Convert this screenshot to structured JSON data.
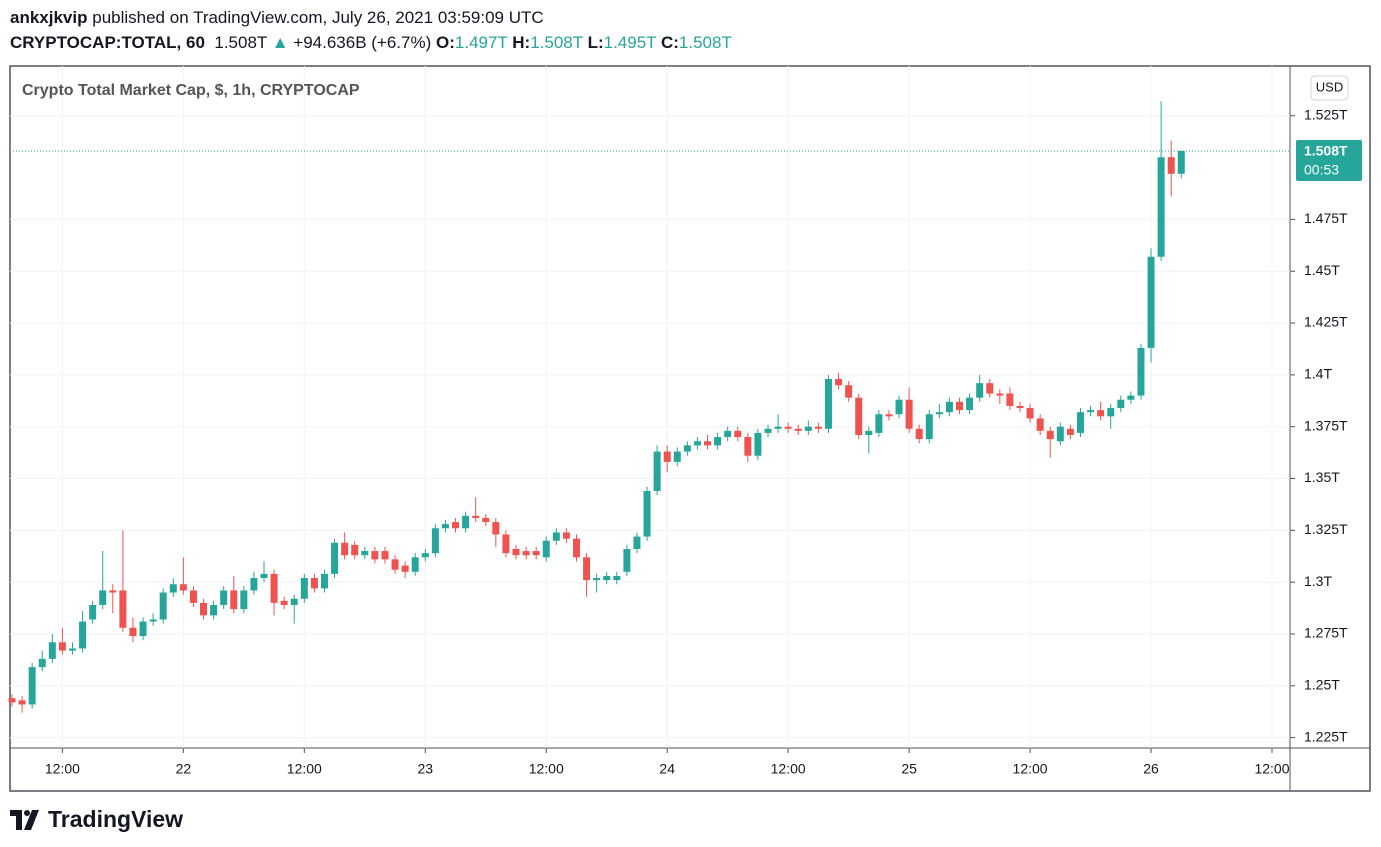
{
  "header": {
    "user": "ankxjkvip",
    "published": "published on TradingView.com, July 26, 2021 03:59:09 UTC",
    "symbol": "CRYPTOCAP:TOTAL, 60",
    "price": "1.508T",
    "change": "+94.636B (+6.7%)",
    "ohlc": [
      {
        "label": "O:",
        "value": "1.497T"
      },
      {
        "label": "H:",
        "value": "1.508T"
      },
      {
        "label": "L:",
        "value": "1.495T"
      },
      {
        "label": "C:",
        "value": "1.508T"
      }
    ]
  },
  "chart_data": {
    "type": "candlestick",
    "title": "Crypto Total Market Cap, $, 1h, CRYPTOCAP",
    "currency": "USD",
    "up_color": "#26a69a",
    "down_color": "#ef5350",
    "grid": true,
    "last_price": {
      "value": 1.508,
      "label": "1.508T",
      "countdown": "00:53"
    },
    "ylim": [
      1.22,
      1.549
    ],
    "yticks": [
      {
        "value": 1.225,
        "label": "1.225T"
      },
      {
        "value": 1.25,
        "label": "1.25T"
      },
      {
        "value": 1.275,
        "label": "1.275T"
      },
      {
        "value": 1.3,
        "label": "1.3T"
      },
      {
        "value": 1.325,
        "label": "1.325T"
      },
      {
        "value": 1.35,
        "label": "1.35T"
      },
      {
        "value": 1.375,
        "label": "1.375T"
      },
      {
        "value": 1.4,
        "label": "1.4T"
      },
      {
        "value": 1.425,
        "label": "1.425T"
      },
      {
        "value": 1.45,
        "label": "1.45T"
      },
      {
        "value": 1.475,
        "label": "1.475T"
      },
      {
        "value": 1.525,
        "label": "1.525T"
      }
    ],
    "categories": [
      null,
      null,
      null,
      null,
      null,
      "12:00",
      null,
      null,
      null,
      null,
      null,
      null,
      null,
      null,
      null,
      null,
      null,
      "22",
      null,
      null,
      null,
      null,
      null,
      null,
      null,
      null,
      null,
      null,
      null,
      "12:00",
      null,
      null,
      null,
      null,
      null,
      null,
      null,
      null,
      null,
      null,
      null,
      "23",
      null,
      null,
      null,
      null,
      null,
      null,
      null,
      null,
      null,
      null,
      null,
      "12:00",
      null,
      null,
      null,
      null,
      null,
      null,
      null,
      null,
      null,
      null,
      null,
      "24",
      null,
      null,
      null,
      null,
      null,
      null,
      null,
      null,
      null,
      null,
      null,
      "12:00",
      null,
      null,
      null,
      null,
      null,
      null,
      null,
      null,
      null,
      null,
      null,
      "25",
      null,
      null,
      null,
      null,
      null,
      null,
      null,
      null,
      null,
      null,
      null,
      "12:00",
      null,
      null,
      null,
      null,
      null,
      null,
      null,
      null,
      null,
      null,
      null,
      "26",
      null,
      null,
      null,
      null,
      null,
      null,
      null,
      null,
      null,
      null,
      null,
      "12:00"
    ],
    "open": [
      1.244,
      1.243,
      1.241,
      1.259,
      1.263,
      1.271,
      1.267,
      1.268,
      1.282,
      1.289,
      1.296,
      1.296,
      1.278,
      1.274,
      1.281,
      1.282,
      1.295,
      1.299,
      1.296,
      1.29,
      1.284,
      1.289,
      1.296,
      1.287,
      1.296,
      1.302,
      1.304,
      1.291,
      1.289,
      1.292,
      1.302,
      1.297,
      1.304,
      1.319,
      1.318,
      1.313,
      1.315,
      1.315,
      1.311,
      1.308,
      1.305,
      1.312,
      1.314,
      1.326,
      1.329,
      1.326,
      1.332,
      1.331,
      1.329,
      1.323,
      1.316,
      1.315,
      1.315,
      1.312,
      1.32,
      1.324,
      1.321,
      1.312,
      1.301,
      1.301,
      1.301,
      1.305,
      1.316,
      1.322,
      1.344,
      1.363,
      1.358,
      1.363,
      1.366,
      1.368,
      1.366,
      1.37,
      1.373,
      1.37,
      1.361,
      1.372,
      1.374,
      1.375,
      1.374,
      1.373,
      1.375,
      1.374,
      1.398,
      1.395,
      1.389,
      1.371,
      1.372,
      1.381,
      1.381,
      1.388,
      1.374,
      1.369,
      1.381,
      1.382,
      1.387,
      1.383,
      1.389,
      1.396,
      1.391,
      1.391,
      1.385,
      1.384,
      1.379,
      1.373,
      1.368,
      1.374,
      1.372,
      1.382,
      1.383,
      1.38,
      1.384,
      1.388,
      1.39,
      1.413,
      1.457,
      1.505,
      1.497,
      null,
      null,
      null,
      null,
      null,
      null,
      null,
      null,
      null
    ],
    "high": [
      1.246,
      1.245,
      1.261,
      1.267,
      1.275,
      1.278,
      1.271,
      1.286,
      1.291,
      1.315,
      1.299,
      1.325,
      1.283,
      1.283,
      1.285,
      1.297,
      1.302,
      1.312,
      1.298,
      1.292,
      1.291,
      1.298,
      1.303,
      1.298,
      1.305,
      1.31,
      1.306,
      1.293,
      1.294,
      1.304,
      1.304,
      1.306,
      1.321,
      1.324,
      1.32,
      1.317,
      1.317,
      1.317,
      1.313,
      1.31,
      1.314,
      1.316,
      1.328,
      1.33,
      1.331,
      1.334,
      1.341,
      1.333,
      1.331,
      1.325,
      1.318,
      1.317,
      1.317,
      1.322,
      1.326,
      1.326,
      1.323,
      1.314,
      1.304,
      1.305,
      1.305,
      1.318,
      1.324,
      1.346,
      1.366,
      1.366,
      1.365,
      1.368,
      1.37,
      1.371,
      1.372,
      1.375,
      1.375,
      1.372,
      1.374,
      1.376,
      1.381,
      1.377,
      1.376,
      1.378,
      1.377,
      1.4,
      1.401,
      1.397,
      1.391,
      1.375,
      1.383,
      1.383,
      1.39,
      1.394,
      1.376,
      1.383,
      1.386,
      1.389,
      1.389,
      1.391,
      1.4,
      1.398,
      1.393,
      1.394,
      1.387,
      1.386,
      1.381,
      1.375,
      1.377,
      1.376,
      1.384,
      1.385,
      1.387,
      1.386,
      1.39,
      1.392,
      1.415,
      1.461,
      1.532,
      1.513,
      1.508,
      null,
      null,
      null,
      null,
      null,
      null,
      null,
      null,
      null
    ],
    "low": [
      1.24,
      1.237,
      1.239,
      1.257,
      1.261,
      1.265,
      1.265,
      1.266,
      1.28,
      1.287,
      1.285,
      1.276,
      1.271,
      1.272,
      1.279,
      1.28,
      1.293,
      1.294,
      1.288,
      1.282,
      1.282,
      1.287,
      1.285,
      1.285,
      1.294,
      1.3,
      1.284,
      1.287,
      1.28,
      1.29,
      1.295,
      1.295,
      1.302,
      1.311,
      1.311,
      1.311,
      1.309,
      1.309,
      1.304,
      1.302,
      1.303,
      1.31,
      1.312,
      1.324,
      1.324,
      1.324,
      1.329,
      1.327,
      1.317,
      1.312,
      1.311,
      1.311,
      1.311,
      1.31,
      1.318,
      1.319,
      1.31,
      1.293,
      1.295,
      1.299,
      1.299,
      1.303,
      1.314,
      1.32,
      1.342,
      1.353,
      1.356,
      1.361,
      1.364,
      1.364,
      1.364,
      1.368,
      1.368,
      1.358,
      1.359,
      1.37,
      1.372,
      1.372,
      1.371,
      1.371,
      1.372,
      1.372,
      1.393,
      1.387,
      1.369,
      1.362,
      1.37,
      1.378,
      1.379,
      1.372,
      1.367,
      1.367,
      1.379,
      1.38,
      1.381,
      1.381,
      1.387,
      1.389,
      1.386,
      1.383,
      1.382,
      1.377,
      1.371,
      1.36,
      1.366,
      1.369,
      1.37,
      1.38,
      1.378,
      1.374,
      1.382,
      1.386,
      1.388,
      1.406,
      1.455,
      1.486,
      1.495,
      null,
      null,
      null,
      null,
      null,
      null,
      null,
      null,
      null
    ],
    "close": [
      1.242,
      1.241,
      1.259,
      1.263,
      1.271,
      1.267,
      1.268,
      1.281,
      1.289,
      1.296,
      1.295,
      1.278,
      1.274,
      1.281,
      1.282,
      1.295,
      1.299,
      1.296,
      1.29,
      1.284,
      1.289,
      1.296,
      1.287,
      1.296,
      1.302,
      1.304,
      1.29,
      1.289,
      1.292,
      1.302,
      1.297,
      1.304,
      1.319,
      1.313,
      1.313,
      1.315,
      1.311,
      1.311,
      1.306,
      1.305,
      1.312,
      1.314,
      1.326,
      1.328,
      1.326,
      1.332,
      1.331,
      1.329,
      1.323,
      1.314,
      1.313,
      1.313,
      1.313,
      1.32,
      1.324,
      1.321,
      1.312,
      1.301,
      1.302,
      1.303,
      1.303,
      1.316,
      1.322,
      1.344,
      1.363,
      1.358,
      1.363,
      1.366,
      1.368,
      1.366,
      1.37,
      1.373,
      1.37,
      1.361,
      1.372,
      1.374,
      1.375,
      1.374,
      1.373,
      1.375,
      1.374,
      1.398,
      1.395,
      1.389,
      1.371,
      1.373,
      1.381,
      1.38,
      1.388,
      1.374,
      1.369,
      1.381,
      1.382,
      1.387,
      1.383,
      1.389,
      1.396,
      1.391,
      1.39,
      1.385,
      1.384,
      1.379,
      1.373,
      1.369,
      1.375,
      1.371,
      1.382,
      1.383,
      1.38,
      1.384,
      1.388,
      1.39,
      1.413,
      1.457,
      1.505,
      1.497,
      1.508,
      null,
      null,
      null,
      null,
      null,
      null,
      null,
      null,
      null
    ]
  },
  "footer": {
    "brand": "TradingView"
  }
}
